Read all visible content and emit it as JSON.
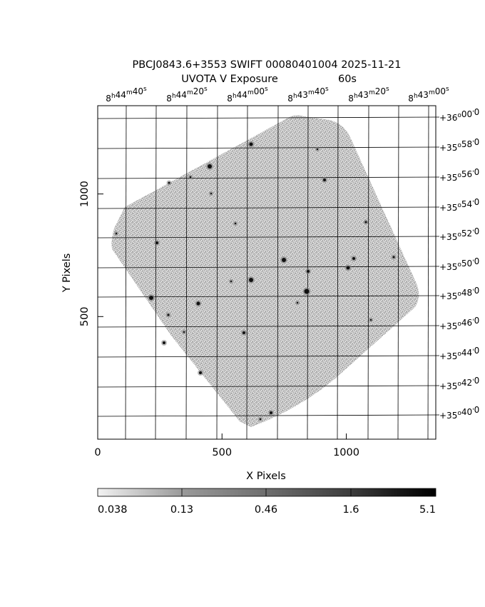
{
  "header": {
    "title": "PBCJ0843.6+3553 SWIFT 00080401004 2025-11-21",
    "subtitle_filter": "UVOTA V Exposure",
    "subtitle_time": "60s"
  },
  "axes": {
    "x_label": "X Pixels",
    "y_label": "Y Pixels",
    "x_ticks": [
      {
        "value": 0,
        "label": "0"
      },
      {
        "value": 500,
        "label": "500"
      },
      {
        "value": 1000,
        "label": "1000"
      }
    ],
    "y_ticks": [
      {
        "value": 500,
        "label": "500"
      },
      {
        "value": 1000,
        "label": "1000"
      }
    ],
    "x_range": [
      0,
      1360
    ],
    "y_range": [
      0,
      1360
    ]
  },
  "wcs": {
    "ra_labels": [
      {
        "h": "8",
        "m": "44",
        "s": "40"
      },
      {
        "h": "8",
        "m": "44",
        "s": "20"
      },
      {
        "h": "8",
        "m": "44",
        "s": "00"
      },
      {
        "h": "8",
        "m": "43",
        "s": "40"
      },
      {
        "h": "8",
        "m": "43",
        "s": "20"
      },
      {
        "h": "8",
        "m": "43",
        "s": "00"
      }
    ],
    "dec_labels": [
      {
        "d": "+36",
        "m": "00",
        "s": "0"
      },
      {
        "d": "+35",
        "m": "58",
        "s": "0"
      },
      {
        "d": "+35",
        "m": "56",
        "s": "0"
      },
      {
        "d": "+35",
        "m": "54",
        "s": "0"
      },
      {
        "d": "+35",
        "m": "52",
        "s": "0"
      },
      {
        "d": "+35",
        "m": "50",
        "s": "0"
      },
      {
        "d": "+35",
        "m": "48",
        "s": "0"
      },
      {
        "d": "+35",
        "m": "46",
        "s": "0"
      },
      {
        "d": "+35",
        "m": "44",
        "s": "0"
      },
      {
        "d": "+35",
        "m": "42",
        "s": "0"
      },
      {
        "d": "+35",
        "m": "40",
        "s": "0"
      }
    ]
  },
  "colorbar": {
    "labels": [
      "0.038",
      "0.13",
      "0.46",
      "1.6",
      "5.1"
    ]
  },
  "colors": {
    "background": "#ffffff",
    "grid": "#000000",
    "image_noise": "#a8a8a8"
  }
}
